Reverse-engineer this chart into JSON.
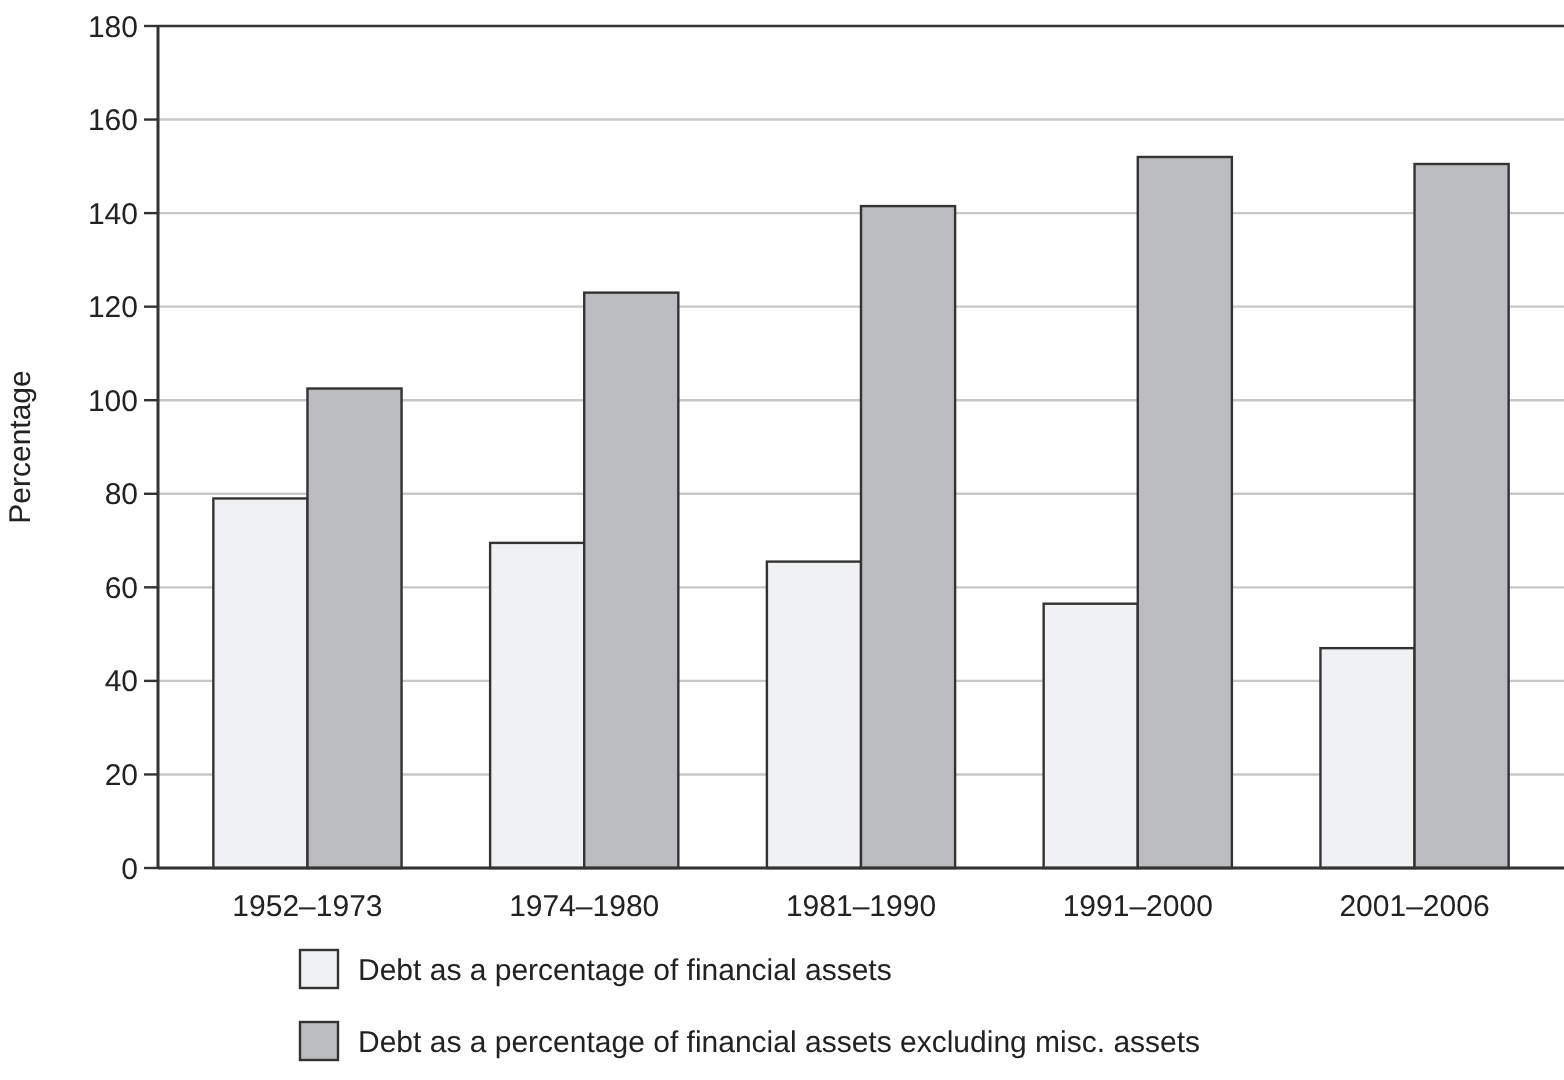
{
  "chart_data": {
    "type": "bar",
    "ylabel": "Percentage",
    "categories": [
      "1952–1973",
      "1974–1980",
      "1981–1990",
      "1991–2000",
      "2001–2006"
    ],
    "series": [
      {
        "name": "Debt as a percentage of financial assets",
        "color": "#f0f1f2",
        "values": [
          79,
          69.5,
          65.5,
          56.5,
          47
        ]
      },
      {
        "name": "Debt as a percentage of financial assets excluding misc. assets",
        "color": "#bbbcbf",
        "values": [
          102.5,
          123,
          141.5,
          152,
          150.5
        ]
      }
    ],
    "ylim": [
      0,
      180
    ],
    "yticks": [
      0,
      20,
      40,
      60,
      80,
      100,
      120,
      140,
      160,
      180
    ],
    "grid": "y",
    "legend": "bottom"
  }
}
